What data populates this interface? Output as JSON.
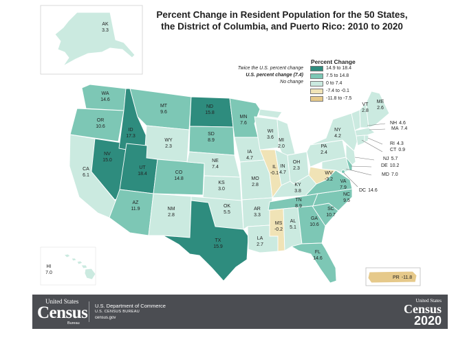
{
  "title": {
    "line1": "Percent Change in Resident Population for the 50 States,",
    "line2": "the District of Columbia, and Puerto Rico: 2010 to 2020"
  },
  "legend": {
    "heading": "Percent Change",
    "bins": [
      {
        "label": "14.9 to 18.4",
        "color": "#2e8c7e"
      },
      {
        "label": "7.5 to 14.8",
        "color": "#7dc7b5"
      },
      {
        "label": "0 to 7.4",
        "color": "#cbeae0"
      },
      {
        "label": "-7.4 to -0.1",
        "color": "#f0e3b6"
      },
      {
        "label": "-11.8 to -7.5",
        "color": "#e6c98a"
      }
    ],
    "notes": [
      {
        "text": "Twice the U.S. percent change",
        "bold": false
      },
      {
        "text": "U.S. percent change (7.4)",
        "bold": true
      },
      {
        "text": "No change",
        "bold": false
      }
    ]
  },
  "states": [
    {
      "abbr": "WA",
      "value": "14.6",
      "bin": 1
    },
    {
      "abbr": "OR",
      "value": "10.6",
      "bin": 1
    },
    {
      "abbr": "CA",
      "value": "6.1",
      "bin": 2
    },
    {
      "abbr": "NV",
      "value": "15.0",
      "bin": 0
    },
    {
      "abbr": "ID",
      "value": "17.3",
      "bin": 0
    },
    {
      "abbr": "MT",
      "value": "9.6",
      "bin": 1
    },
    {
      "abbr": "WY",
      "value": "2.3",
      "bin": 2
    },
    {
      "abbr": "UT",
      "value": "18.4",
      "bin": 0
    },
    {
      "abbr": "AZ",
      "value": "11.9",
      "bin": 1
    },
    {
      "abbr": "CO",
      "value": "14.8",
      "bin": 1
    },
    {
      "abbr": "NM",
      "value": "2.8",
      "bin": 2
    },
    {
      "abbr": "ND",
      "value": "15.8",
      "bin": 0
    },
    {
      "abbr": "SD",
      "value": "8.9",
      "bin": 1
    },
    {
      "abbr": "NE",
      "value": "7.4",
      "bin": 2
    },
    {
      "abbr": "KS",
      "value": "3.0",
      "bin": 2
    },
    {
      "abbr": "OK",
      "value": "5.5",
      "bin": 2
    },
    {
      "abbr": "TX",
      "value": "15.9",
      "bin": 0
    },
    {
      "abbr": "MN",
      "value": "7.6",
      "bin": 1
    },
    {
      "abbr": "IA",
      "value": "4.7",
      "bin": 2
    },
    {
      "abbr": "MO",
      "value": "2.8",
      "bin": 2
    },
    {
      "abbr": "AR",
      "value": "3.3",
      "bin": 2
    },
    {
      "abbr": "LA",
      "value": "2.7",
      "bin": 2
    },
    {
      "abbr": "WI",
      "value": "3.6",
      "bin": 2
    },
    {
      "abbr": "IL",
      "value": "-0.1",
      "bin": 3
    },
    {
      "abbr": "MS",
      "value": "-0.2",
      "bin": 3
    },
    {
      "abbr": "MI",
      "value": "2.0",
      "bin": 2
    },
    {
      "abbr": "IN",
      "value": "4.7",
      "bin": 2
    },
    {
      "abbr": "KY",
      "value": "3.8",
      "bin": 2
    },
    {
      "abbr": "TN",
      "value": "8.9",
      "bin": 1
    },
    {
      "abbr": "AL",
      "value": "5.1",
      "bin": 2
    },
    {
      "abbr": "OH",
      "value": "2.3",
      "bin": 2
    },
    {
      "abbr": "WV",
      "value": "-3.2",
      "bin": 3
    },
    {
      "abbr": "GA",
      "value": "10.6",
      "bin": 1
    },
    {
      "abbr": "FL",
      "value": "14.6",
      "bin": 1
    },
    {
      "abbr": "SC",
      "value": "10.7",
      "bin": 1
    },
    {
      "abbr": "NC",
      "value": "9.5",
      "bin": 1
    },
    {
      "abbr": "VA",
      "value": "7.9",
      "bin": 1
    },
    {
      "abbr": "PA",
      "value": "2.4",
      "bin": 2
    },
    {
      "abbr": "NY",
      "value": "4.2",
      "bin": 2
    },
    {
      "abbr": "VT",
      "value": "2.8",
      "bin": 2
    },
    {
      "abbr": "ME",
      "value": "2.6",
      "bin": 2
    },
    {
      "abbr": "NH",
      "value": "4.6",
      "bin": 2
    },
    {
      "abbr": "MA",
      "value": "7.4",
      "bin": 2
    },
    {
      "abbr": "RI",
      "value": "4.3",
      "bin": 2
    },
    {
      "abbr": "CT",
      "value": "0.9",
      "bin": 2
    },
    {
      "abbr": "NJ",
      "value": "5.7",
      "bin": 2
    },
    {
      "abbr": "DE",
      "value": "10.2",
      "bin": 1
    },
    {
      "abbr": "MD",
      "value": "7.0",
      "bin": 2
    },
    {
      "abbr": "DC",
      "value": "14.6",
      "bin": 1
    },
    {
      "abbr": "AK",
      "value": "3.3",
      "bin": 2
    },
    {
      "abbr": "HI",
      "value": "7.0",
      "bin": 2
    },
    {
      "abbr": "PR",
      "value": "-11.8",
      "bin": 4
    }
  ],
  "footer": {
    "logo_top": "United States",
    "logo_word": "Census",
    "logo_bureau": "Bureau",
    "dept": "U.S. Department of Commerce",
    "agency": "U.S. CENSUS BUREAU",
    "url": "census.gov",
    "census2020_top": "United States",
    "census2020_word": "Census",
    "census2020_year": "2020"
  }
}
